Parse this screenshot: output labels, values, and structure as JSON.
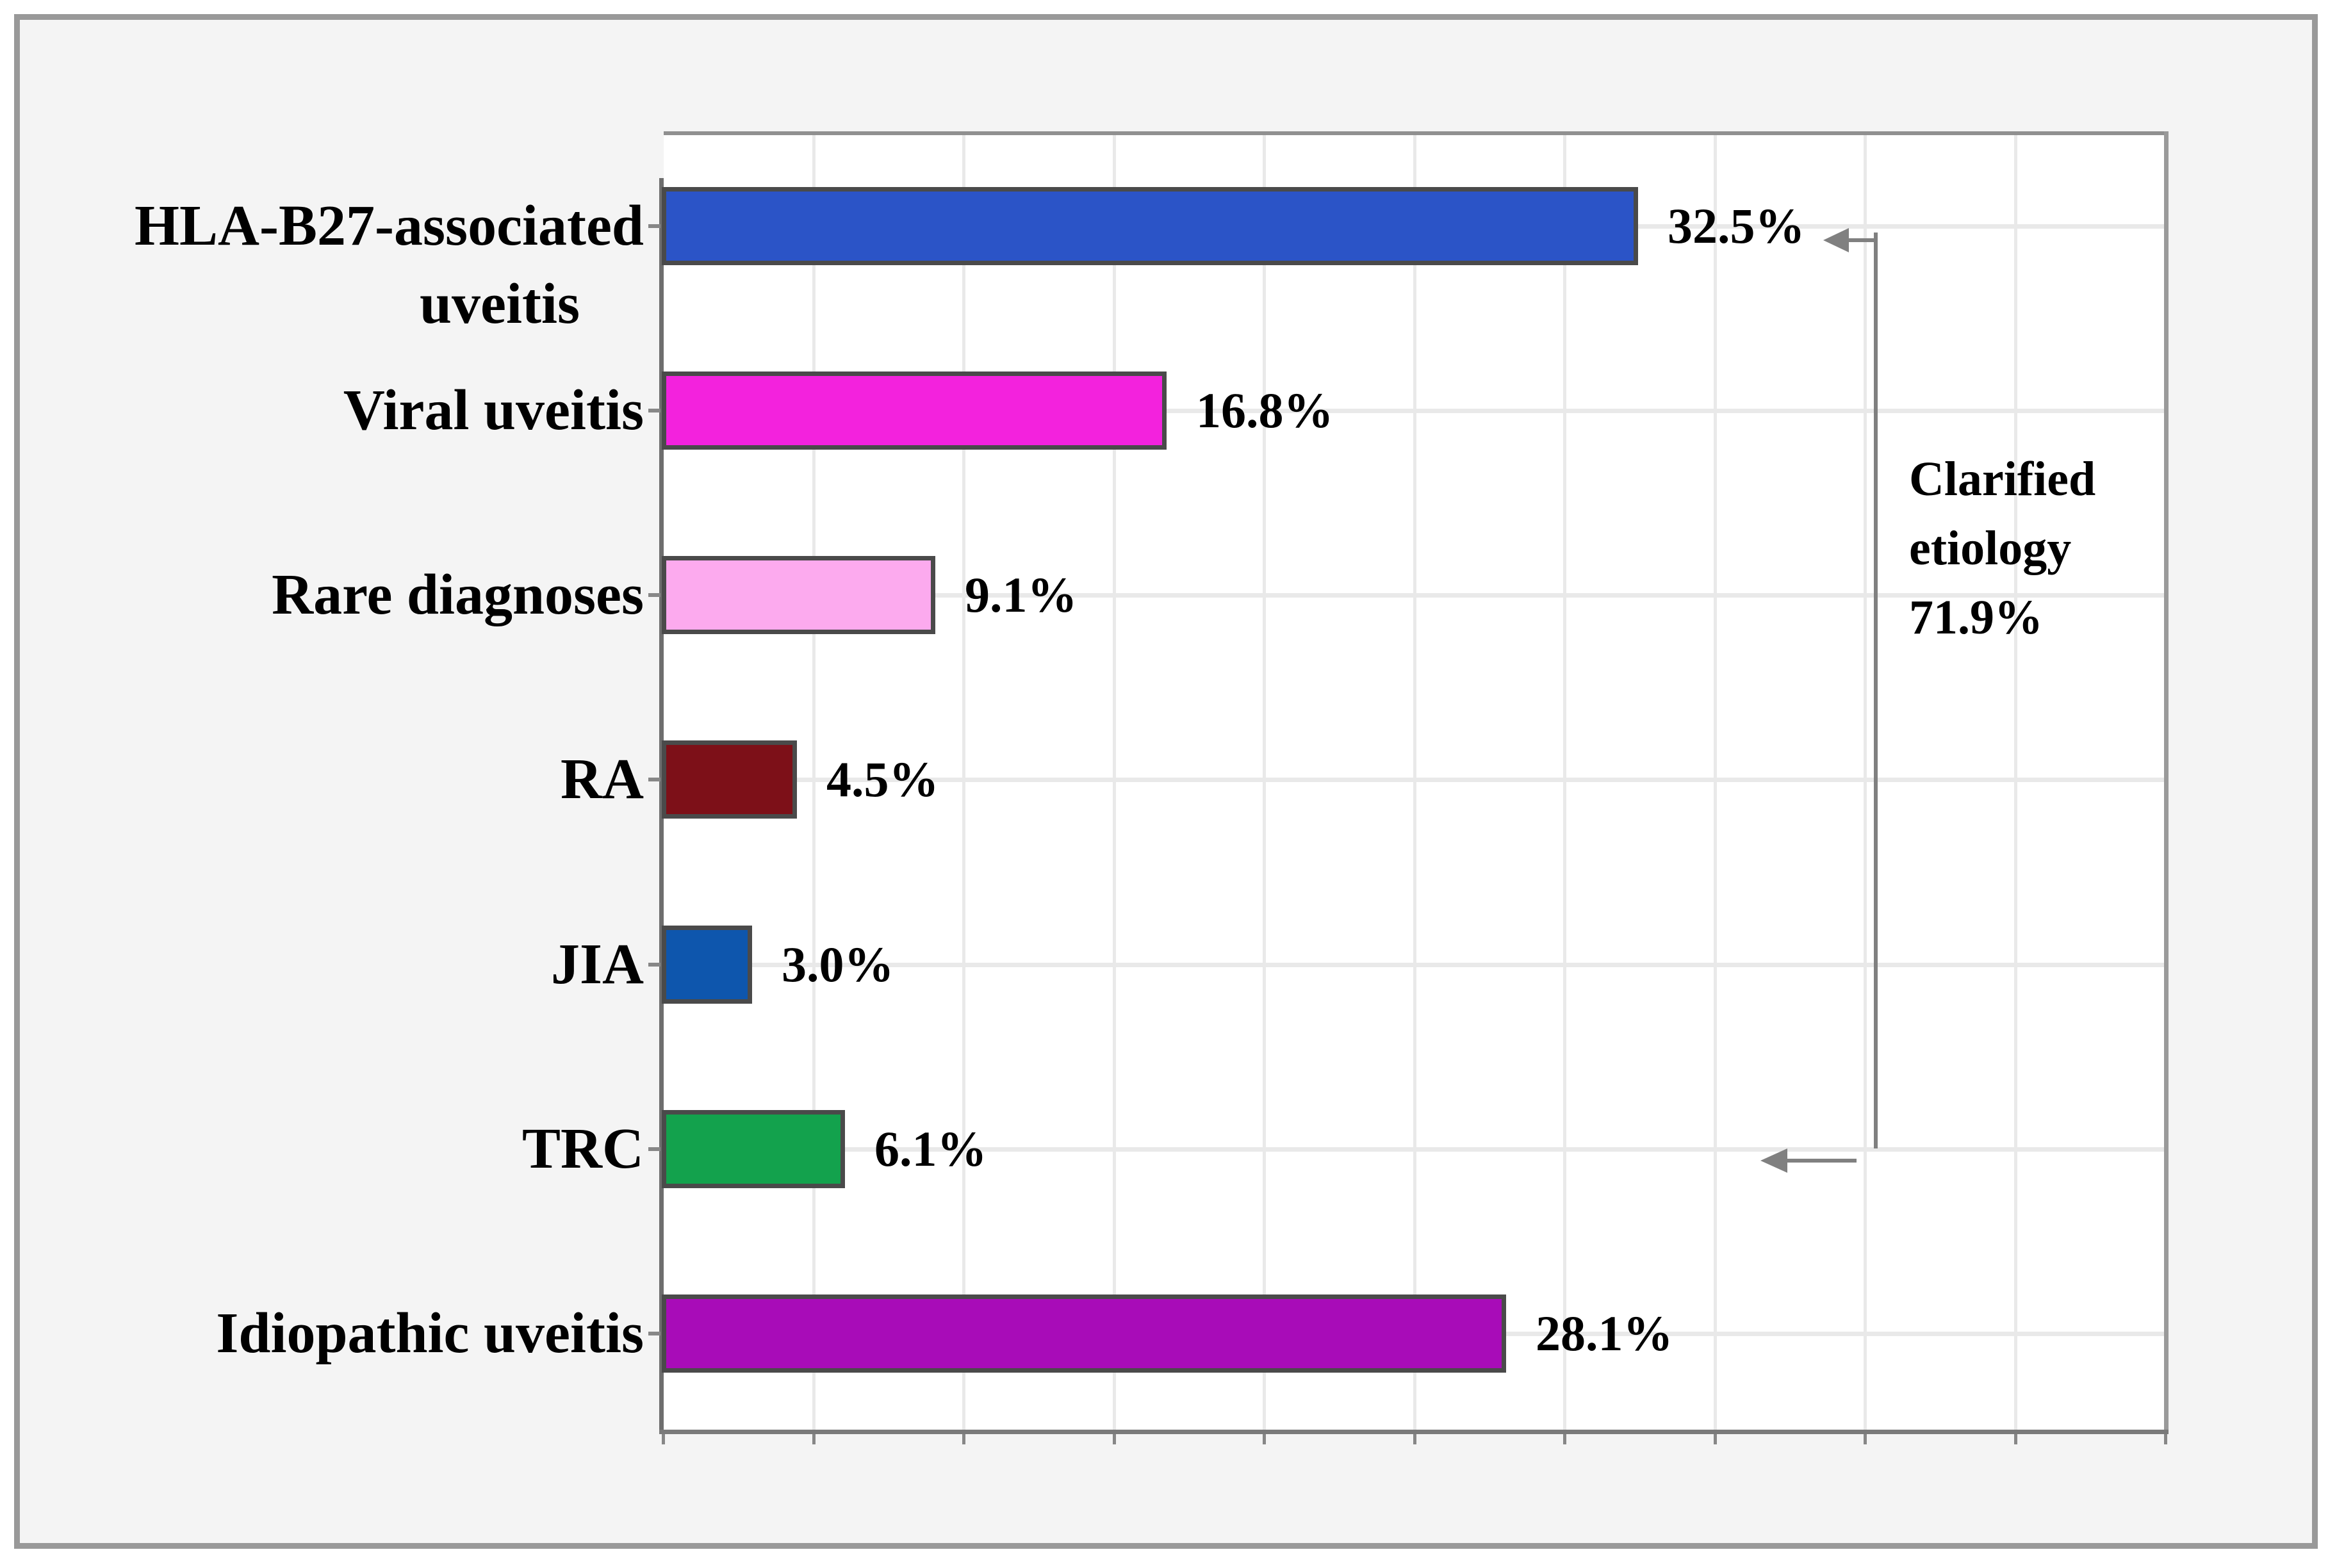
{
  "chart_data": {
    "type": "bar",
    "orientation": "horizontal",
    "title": "",
    "xlabel": "",
    "ylabel": "",
    "xlim": [
      0,
      50
    ],
    "grid": true,
    "grid_step_percent": 5,
    "x_tick_labels_shown": false,
    "categories": [
      "HLA-B27-associated uveitis",
      "Viral uveitis",
      "Rare diagnoses",
      "RA",
      "JIA",
      "TRC",
      "Idiopathic uveitis"
    ],
    "category_lines": [
      [
        "HLA-B27-associated",
        "uveitis"
      ],
      [
        "Viral uveitis"
      ],
      [
        "Rare diagnoses"
      ],
      [
        "RA"
      ],
      [
        "JIA"
      ],
      [
        "TRC"
      ],
      [
        "Idiopathic uveitis"
      ]
    ],
    "values": [
      32.5,
      16.8,
      9.1,
      4.5,
      3.0,
      6.1,
      28.1
    ],
    "value_labels": [
      "32.5%",
      "16.8%",
      "9.1%",
      "4.5%",
      "3.0%",
      "6.1%",
      "28.1%"
    ],
    "bar_colors": [
      "#2b54c7",
      "#f322dd",
      "#fcaaee",
      "#7d1018",
      "#0e56ad",
      "#13a24d",
      "#a80cb8"
    ],
    "bar_patterns": [
      null,
      null,
      "square-dots",
      null,
      null,
      null,
      null
    ],
    "bar_border_color": "#4a4a4a",
    "annotation": {
      "lines": [
        "Clarified",
        "etiology",
        "71.9%"
      ],
      "text": "Clarified etiology 71.9%",
      "covers_categories": [
        "HLA-B27-associated uveitis",
        "Viral uveitis",
        "Rare diagnoses",
        "RA",
        "JIA",
        "TRC"
      ],
      "arrow_color": "#808080"
    },
    "colors": {
      "plot_background": "#ffffff",
      "outer_background": "#f4f4f4",
      "frame_border": "#999999",
      "gridline": "#e9e9e9",
      "axis": "#6e6e6e"
    }
  }
}
